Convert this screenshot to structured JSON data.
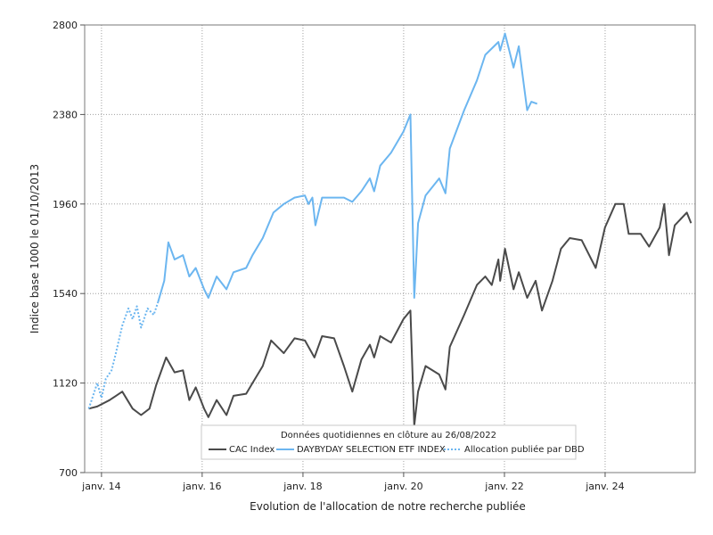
{
  "chart_data": {
    "type": "line",
    "xlabel": "Evolution de l'allocation de notre recherche publiée",
    "ylabel": "Indice base 1000 le 01/10/2013",
    "ylim": [
      700,
      2800
    ],
    "yticks": [
      700,
      1120,
      1540,
      1960,
      2380,
      2800
    ],
    "xlim": [
      "2013-09-01",
      "2025-10-15"
    ],
    "xticks": [
      {
        "date": "2014-01-01",
        "label": "janv. 14"
      },
      {
        "date": "2016-01-01",
        "label": "janv. 16"
      },
      {
        "date": "2018-01-01",
        "label": "janv. 18"
      },
      {
        "date": "2020-01-01",
        "label": "janv. 20"
      },
      {
        "date": "2022-01-01",
        "label": "janv. 22"
      },
      {
        "date": "2024-01-01",
        "label": "janv. 24"
      }
    ],
    "grid": true,
    "legend": {
      "placement": "bottom-center",
      "title": "Données quotidiennes en clôture au 26/08/2022"
    },
    "series": [
      {
        "name": "CAC Index",
        "color": "#4a4a4a",
        "style": "solid",
        "points": [
          [
            "2013-10-01",
            1000
          ],
          [
            "2013-12-01",
            1010
          ],
          [
            "2014-03-01",
            1040
          ],
          [
            "2014-06-01",
            1080
          ],
          [
            "2014-08-15",
            1000
          ],
          [
            "2014-10-15",
            970
          ],
          [
            "2014-12-15",
            1000
          ],
          [
            "2015-02-01",
            1110
          ],
          [
            "2015-04-15",
            1240
          ],
          [
            "2015-06-15",
            1170
          ],
          [
            "2015-08-15",
            1180
          ],
          [
            "2015-09-30",
            1040
          ],
          [
            "2015-11-15",
            1100
          ],
          [
            "2016-01-15",
            1000
          ],
          [
            "2016-02-15",
            960
          ],
          [
            "2016-04-15",
            1040
          ],
          [
            "2016-06-25",
            970
          ],
          [
            "2016-08-15",
            1060
          ],
          [
            "2016-11-15",
            1070
          ],
          [
            "2016-12-31",
            1120
          ],
          [
            "2017-03-15",
            1200
          ],
          [
            "2017-05-15",
            1320
          ],
          [
            "2017-08-15",
            1260
          ],
          [
            "2017-11-01",
            1330
          ],
          [
            "2018-01-15",
            1320
          ],
          [
            "2018-03-25",
            1240
          ],
          [
            "2018-05-20",
            1340
          ],
          [
            "2018-08-15",
            1330
          ],
          [
            "2018-10-25",
            1200
          ],
          [
            "2018-12-25",
            1080
          ],
          [
            "2019-03-01",
            1230
          ],
          [
            "2019-05-01",
            1300
          ],
          [
            "2019-06-01",
            1240
          ],
          [
            "2019-07-15",
            1340
          ],
          [
            "2019-10-01",
            1310
          ],
          [
            "2019-12-31",
            1420
          ],
          [
            "2020-02-19",
            1460
          ],
          [
            "2020-03-18",
            920
          ],
          [
            "2020-04-15",
            1080
          ],
          [
            "2020-06-08",
            1200
          ],
          [
            "2020-09-15",
            1160
          ],
          [
            "2020-10-30",
            1090
          ],
          [
            "2020-12-01",
            1290
          ],
          [
            "2021-03-15",
            1440
          ],
          [
            "2021-06-15",
            1580
          ],
          [
            "2021-08-15",
            1620
          ],
          [
            "2021-10-01",
            1580
          ],
          [
            "2021-11-18",
            1700
          ],
          [
            "2021-12-01",
            1600
          ],
          [
            "2022-01-05",
            1750
          ],
          [
            "2022-03-08",
            1560
          ],
          [
            "2022-04-15",
            1640
          ],
          [
            "2022-06-15",
            1520
          ],
          [
            "2022-08-15",
            1600
          ],
          [
            "2022-09-30",
            1460
          ],
          [
            "2022-12-15",
            1600
          ],
          [
            "2023-02-15",
            1750
          ],
          [
            "2023-04-20",
            1800
          ],
          [
            "2023-07-15",
            1790
          ],
          [
            "2023-10-25",
            1660
          ],
          [
            "2023-12-31",
            1850
          ],
          [
            "2024-03-15",
            1960
          ],
          [
            "2024-05-15",
            1960
          ],
          [
            "2024-06-20",
            1820
          ],
          [
            "2024-09-15",
            1820
          ],
          [
            "2024-11-15",
            1760
          ],
          [
            "2025-01-31",
            1850
          ],
          [
            "2025-03-05",
            1960
          ],
          [
            "2025-04-08",
            1720
          ],
          [
            "2025-05-20",
            1860
          ],
          [
            "2025-08-15",
            1920
          ],
          [
            "2025-09-15",
            1870
          ]
        ]
      },
      {
        "name": "DAYBYDAY SELECTION ETF INDEX",
        "color": "#6cb6f0",
        "style": "solid",
        "points": [
          [
            "2015-02-15",
            1500
          ],
          [
            "2015-04-01",
            1600
          ],
          [
            "2015-05-01",
            1780
          ],
          [
            "2015-06-15",
            1700
          ],
          [
            "2015-08-15",
            1720
          ],
          [
            "2015-09-30",
            1620
          ],
          [
            "2015-11-15",
            1660
          ],
          [
            "2016-01-15",
            1560
          ],
          [
            "2016-02-15",
            1520
          ],
          [
            "2016-04-15",
            1620
          ],
          [
            "2016-06-25",
            1560
          ],
          [
            "2016-08-15",
            1640
          ],
          [
            "2016-11-15",
            1660
          ],
          [
            "2016-12-31",
            1720
          ],
          [
            "2017-03-15",
            1800
          ],
          [
            "2017-06-01",
            1920
          ],
          [
            "2017-08-15",
            1960
          ],
          [
            "2017-11-01",
            1990
          ],
          [
            "2018-01-15",
            2000
          ],
          [
            "2018-02-10",
            1960
          ],
          [
            "2018-03-10",
            1990
          ],
          [
            "2018-04-01",
            1860
          ],
          [
            "2018-05-20",
            1990
          ],
          [
            "2018-08-15",
            1990
          ],
          [
            "2018-10-25",
            1990
          ],
          [
            "2018-12-25",
            1970
          ],
          [
            "2019-03-01",
            2020
          ],
          [
            "2019-05-01",
            2080
          ],
          [
            "2019-06-01",
            2020
          ],
          [
            "2019-07-15",
            2140
          ],
          [
            "2019-10-01",
            2200
          ],
          [
            "2019-12-31",
            2300
          ],
          [
            "2020-02-19",
            2380
          ],
          [
            "2020-03-18",
            1520
          ],
          [
            "2020-04-15",
            1870
          ],
          [
            "2020-06-08",
            2000
          ],
          [
            "2020-09-15",
            2080
          ],
          [
            "2020-10-30",
            2010
          ],
          [
            "2020-12-01",
            2220
          ],
          [
            "2021-03-15",
            2400
          ],
          [
            "2021-06-15",
            2540
          ],
          [
            "2021-08-15",
            2660
          ],
          [
            "2021-11-18",
            2720
          ],
          [
            "2021-12-01",
            2680
          ],
          [
            "2022-01-05",
            2760
          ],
          [
            "2022-03-08",
            2600
          ],
          [
            "2022-04-15",
            2700
          ],
          [
            "2022-06-15",
            2400
          ],
          [
            "2022-07-15",
            2440
          ],
          [
            "2022-08-26",
            2430
          ]
        ]
      },
      {
        "name": "Allocation publiée par DBD",
        "color": "#6cb6f0",
        "style": "dotted",
        "points": [
          [
            "2013-10-01",
            1000
          ],
          [
            "2013-11-01",
            1060
          ],
          [
            "2013-12-01",
            1120
          ],
          [
            "2014-01-01",
            1050
          ],
          [
            "2014-02-01",
            1140
          ],
          [
            "2014-03-15",
            1180
          ],
          [
            "2014-04-15",
            1260
          ],
          [
            "2014-06-01",
            1390
          ],
          [
            "2014-07-15",
            1470
          ],
          [
            "2014-08-15",
            1420
          ],
          [
            "2014-09-15",
            1480
          ],
          [
            "2014-10-15",
            1380
          ],
          [
            "2014-12-01",
            1470
          ],
          [
            "2015-01-15",
            1440
          ],
          [
            "2015-02-15",
            1500
          ]
        ]
      }
    ]
  }
}
